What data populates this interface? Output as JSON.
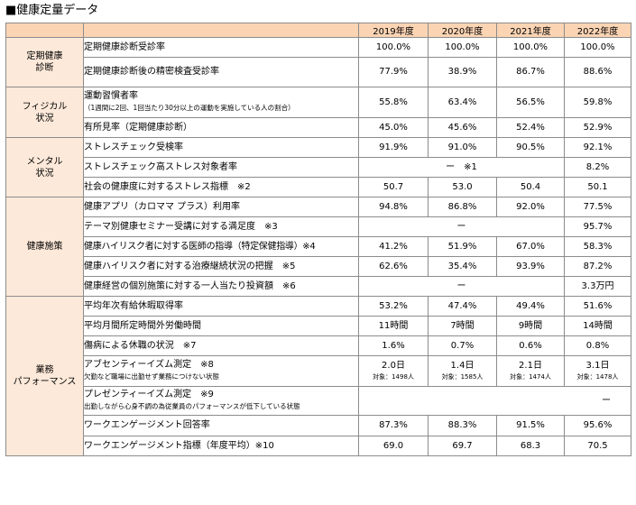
{
  "title": "■健康定量データ",
  "years": [
    "2019年度",
    "2020年度",
    "2021年度",
    "2022年度"
  ],
  "categories": {
    "teiki": "定期健康\n診断",
    "physical": "フィジカル\n状況",
    "mental": "メンタル\n状況",
    "shisaku": "健康施策",
    "gyomu": "業務\nパフォーマンス"
  },
  "rows": [
    {
      "label": "定期健康診断受診率",
      "values": [
        "100.0%",
        "100.0%",
        "100.0%",
        "100.0%"
      ]
    },
    {
      "label": "定期健康診断後の精密検査受診率",
      "values": [
        "77.9%",
        "38.9%",
        "86.7%",
        "88.6%"
      ]
    },
    {
      "label": "運動習慣者率",
      "sub": "（1週間に2回、1回当たり30分以上の運動を実施している人の割合）",
      "values": [
        "55.8%",
        "63.4%",
        "56.5%",
        "59.8%"
      ]
    },
    {
      "label": "有所見率（定期健康診断）",
      "values": [
        "45.0%",
        "45.6%",
        "52.4%",
        "52.9%"
      ]
    },
    {
      "label": "ストレスチェック受検率",
      "values": [
        "91.9%",
        "91.0%",
        "90.5%",
        "92.1%"
      ]
    },
    {
      "label": "ストレスチェック高ストレス対象者率",
      "dash": "ー　※1",
      "value_2022": "8.2%"
    },
    {
      "label": "社会の健康度に対するストレス指標　※2",
      "values": [
        "50.7",
        "53.0",
        "50.4",
        "50.1"
      ]
    },
    {
      "label": "健康アプリ（カロママ プラス）利用率",
      "values": [
        "94.8%",
        "86.8%",
        "92.0%",
        "77.5%"
      ]
    },
    {
      "label": "テーマ別健康セミナー受講に対する満足度　※3",
      "dash": "ー",
      "value_2022": "95.7%"
    },
    {
      "label": "健康ハイリスク者に対する医師の指導（特定保健指導）※4",
      "values": [
        "41.2%",
        "51.9%",
        "67.0%",
        "58.3%"
      ]
    },
    {
      "label": "健康ハイリスク者に対する治療継続状況の把握　※5",
      "values": [
        "62.6%",
        "35.4%",
        "93.9%",
        "87.2%"
      ]
    },
    {
      "label": "健康経営の個別施策に対する一人当たり投資額　※6",
      "dash": "ー",
      "value_2022": "3.3万円"
    },
    {
      "label": "平均年次有給休暇取得率",
      "values": [
        "53.2%",
        "47.4%",
        "49.4%",
        "51.6%"
      ]
    },
    {
      "label": "平均月間所定時間外労働時間",
      "values": [
        "11時間",
        "7時間",
        "9時間",
        "14時間"
      ]
    },
    {
      "label": "傷病による休職の状況　※7",
      "values": [
        "1.6%",
        "0.7%",
        "0.6%",
        "0.8%"
      ]
    },
    {
      "label": "アブセンティーイズム測定　※8",
      "sub": "欠勤など職場に出勤せず業務につけない状態",
      "values": [
        "2.0日",
        "1.4日",
        "2.1日",
        "3.1日"
      ],
      "subs": [
        "対象：1498人",
        "対象：1585人",
        "対象：1474人",
        "対象：1478人"
      ]
    },
    {
      "label": "プレゼンティーイズム測定　※9",
      "sub": "出勤しながら心身不調の為従業員のパフォーマンスが低下している状態",
      "dash": "ー"
    },
    {
      "label": "ワークエンゲージメント回答率",
      "values": [
        "87.3%",
        "88.3%",
        "91.5%",
        "95.6%"
      ]
    },
    {
      "label": "ワークエンゲージメント指標（年度平均）※10",
      "values": [
        "69.0",
        "69.7",
        "68.3",
        "70.5"
      ]
    }
  ]
}
